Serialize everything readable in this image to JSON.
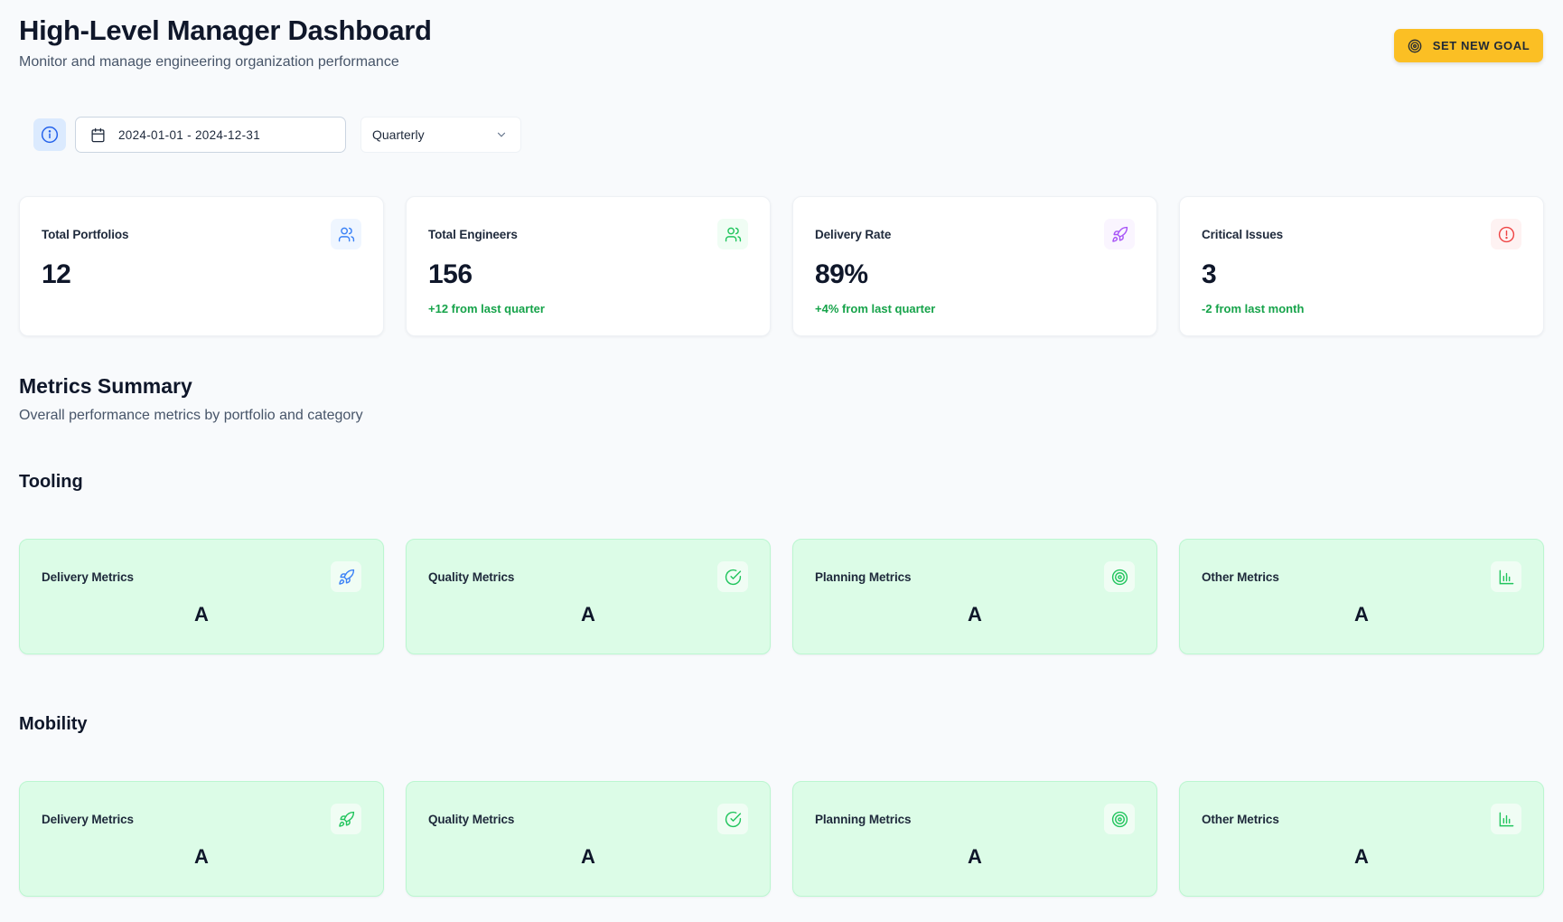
{
  "header": {
    "title": "High-Level Manager Dashboard",
    "subtitle": "Monitor and manage engineering organization performance",
    "goal_button_label": "SET NEW GOAL"
  },
  "filters": {
    "date_range": "2024-01-01 - 2024-12-31",
    "period": "Quarterly"
  },
  "stats": [
    {
      "label": "Total Portfolios",
      "value": "12",
      "change": "",
      "icon": "users-icon",
      "icon_color": "#3b82f6",
      "icon_bg": "#eff6ff"
    },
    {
      "label": "Total Engineers",
      "value": "156",
      "change": "+12 from last quarter",
      "icon": "users-icon",
      "icon_color": "#22c55e",
      "icon_bg": "#f0fdf4"
    },
    {
      "label": "Delivery Rate",
      "value": "89%",
      "change": "+4% from last quarter",
      "icon": "rocket-icon",
      "icon_color": "#a855f7",
      "icon_bg": "#faf5ff"
    },
    {
      "label": "Critical Issues",
      "value": "3",
      "change": "-2 from last month",
      "icon": "alert-circle-icon",
      "icon_color": "#ef4444",
      "icon_bg": "#fef2f2"
    }
  ],
  "metrics_summary": {
    "title": "Metrics Summary",
    "subtitle": "Overall performance metrics by portfolio and category",
    "groups": [
      {
        "name": "Tooling",
        "cards": [
          {
            "label": "Delivery Metrics",
            "grade": "A",
            "icon": "rocket-icon",
            "icon_color": "#3b82f6"
          },
          {
            "label": "Quality Metrics",
            "grade": "A",
            "icon": "check-circle-icon",
            "icon_color": "#22c55e"
          },
          {
            "label": "Planning Metrics",
            "grade": "A",
            "icon": "target-icon",
            "icon_color": "#22c55e"
          },
          {
            "label": "Other Metrics",
            "grade": "A",
            "icon": "bar-chart-icon",
            "icon_color": "#22c55e"
          }
        ]
      },
      {
        "name": "Mobility",
        "cards": [
          {
            "label": "Delivery Metrics",
            "grade": "A",
            "icon": "rocket-icon",
            "icon_color": "#22c55e"
          },
          {
            "label": "Quality Metrics",
            "grade": "A",
            "icon": "check-circle-icon",
            "icon_color": "#22c55e"
          },
          {
            "label": "Planning Metrics",
            "grade": "A",
            "icon": "target-icon",
            "icon_color": "#22c55e"
          },
          {
            "label": "Other Metrics",
            "grade": "A",
            "icon": "bar-chart-icon",
            "icon_color": "#22c55e"
          }
        ]
      }
    ]
  },
  "colors": {
    "accent": "#fbbf24",
    "positive": "#16a34a",
    "metric_card_bg": "#dcfce7"
  }
}
